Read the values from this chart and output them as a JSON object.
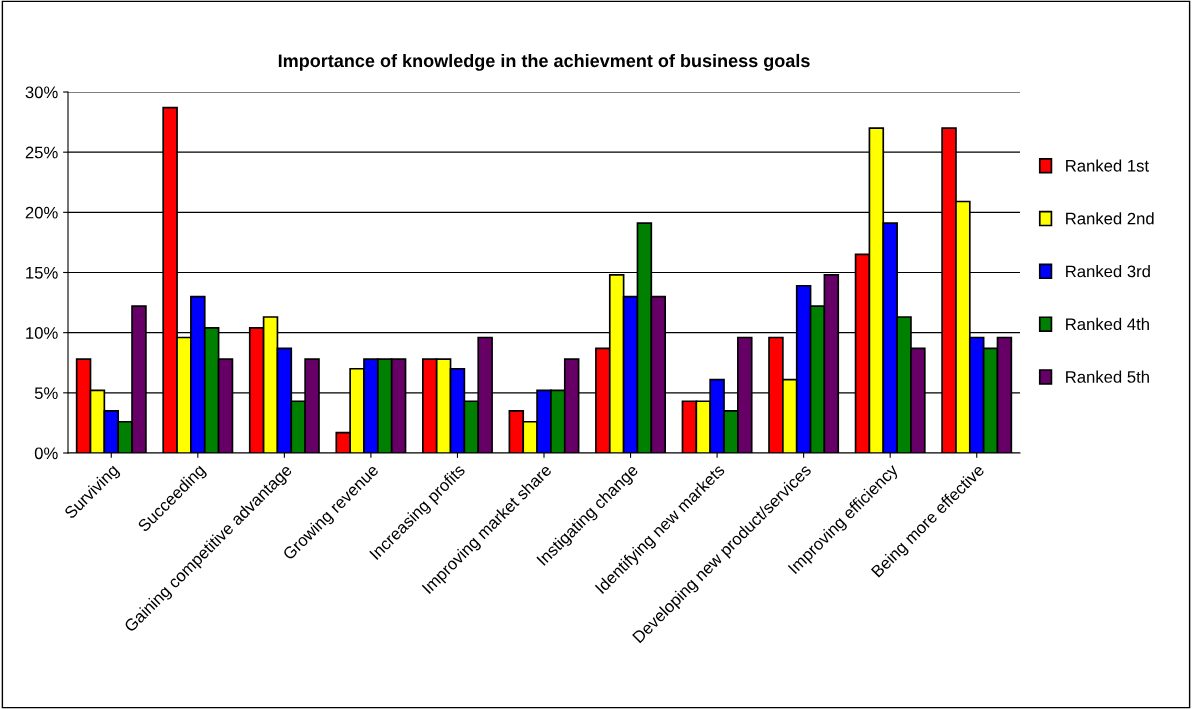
{
  "chart_data": {
    "type": "bar",
    "title": "Importance of knowledge in the achievment of business goals",
    "categories": [
      "Surviving",
      "Succeeding",
      "Gaining competitive advantage",
      "Growing revenue",
      "Increasing profits",
      "Improving market share",
      "Instigating change",
      "Identifying new markets",
      "Developing new product/services",
      "Improving efficiency",
      "Being more effective"
    ],
    "series": [
      {
        "name": "Ranked 1st",
        "color": "#ff0000",
        "values": [
          7.8,
          28.7,
          10.4,
          1.7,
          7.8,
          3.5,
          8.7,
          4.3,
          9.6,
          16.5,
          27.0
        ]
      },
      {
        "name": "Ranked 2nd",
        "color": "#ffff00",
        "values": [
          5.2,
          9.6,
          11.3,
          7.0,
          7.8,
          2.6,
          14.8,
          4.3,
          6.1,
          27.0,
          20.9
        ]
      },
      {
        "name": "Ranked 3rd",
        "color": "#0000ff",
        "values": [
          3.5,
          13.0,
          8.7,
          7.8,
          7.0,
          5.2,
          13.0,
          6.1,
          13.9,
          19.1,
          9.6
        ]
      },
      {
        "name": "Ranked 4th",
        "color": "#008000",
        "values": [
          2.6,
          10.4,
          4.3,
          7.8,
          4.3,
          5.2,
          19.1,
          3.5,
          12.2,
          11.3,
          8.7
        ]
      },
      {
        "name": "Ranked 5th",
        "color": "#660066",
        "values": [
          12.2,
          7.8,
          7.8,
          7.8,
          9.6,
          7.8,
          13.0,
          9.6,
          14.8,
          8.7,
          9.6
        ]
      }
    ],
    "ylim": [
      0,
      30
    ],
    "yticks": [
      {
        "value": 0,
        "label": "0%"
      },
      {
        "value": 5,
        "label": "5%"
      },
      {
        "value": 10,
        "label": "10%"
      },
      {
        "value": 15,
        "label": "15%"
      },
      {
        "value": 20,
        "label": "20%"
      },
      {
        "value": 25,
        "label": "25%"
      },
      {
        "value": 30,
        "label": "30%"
      }
    ],
    "grid": "y",
    "legend": "right"
  }
}
